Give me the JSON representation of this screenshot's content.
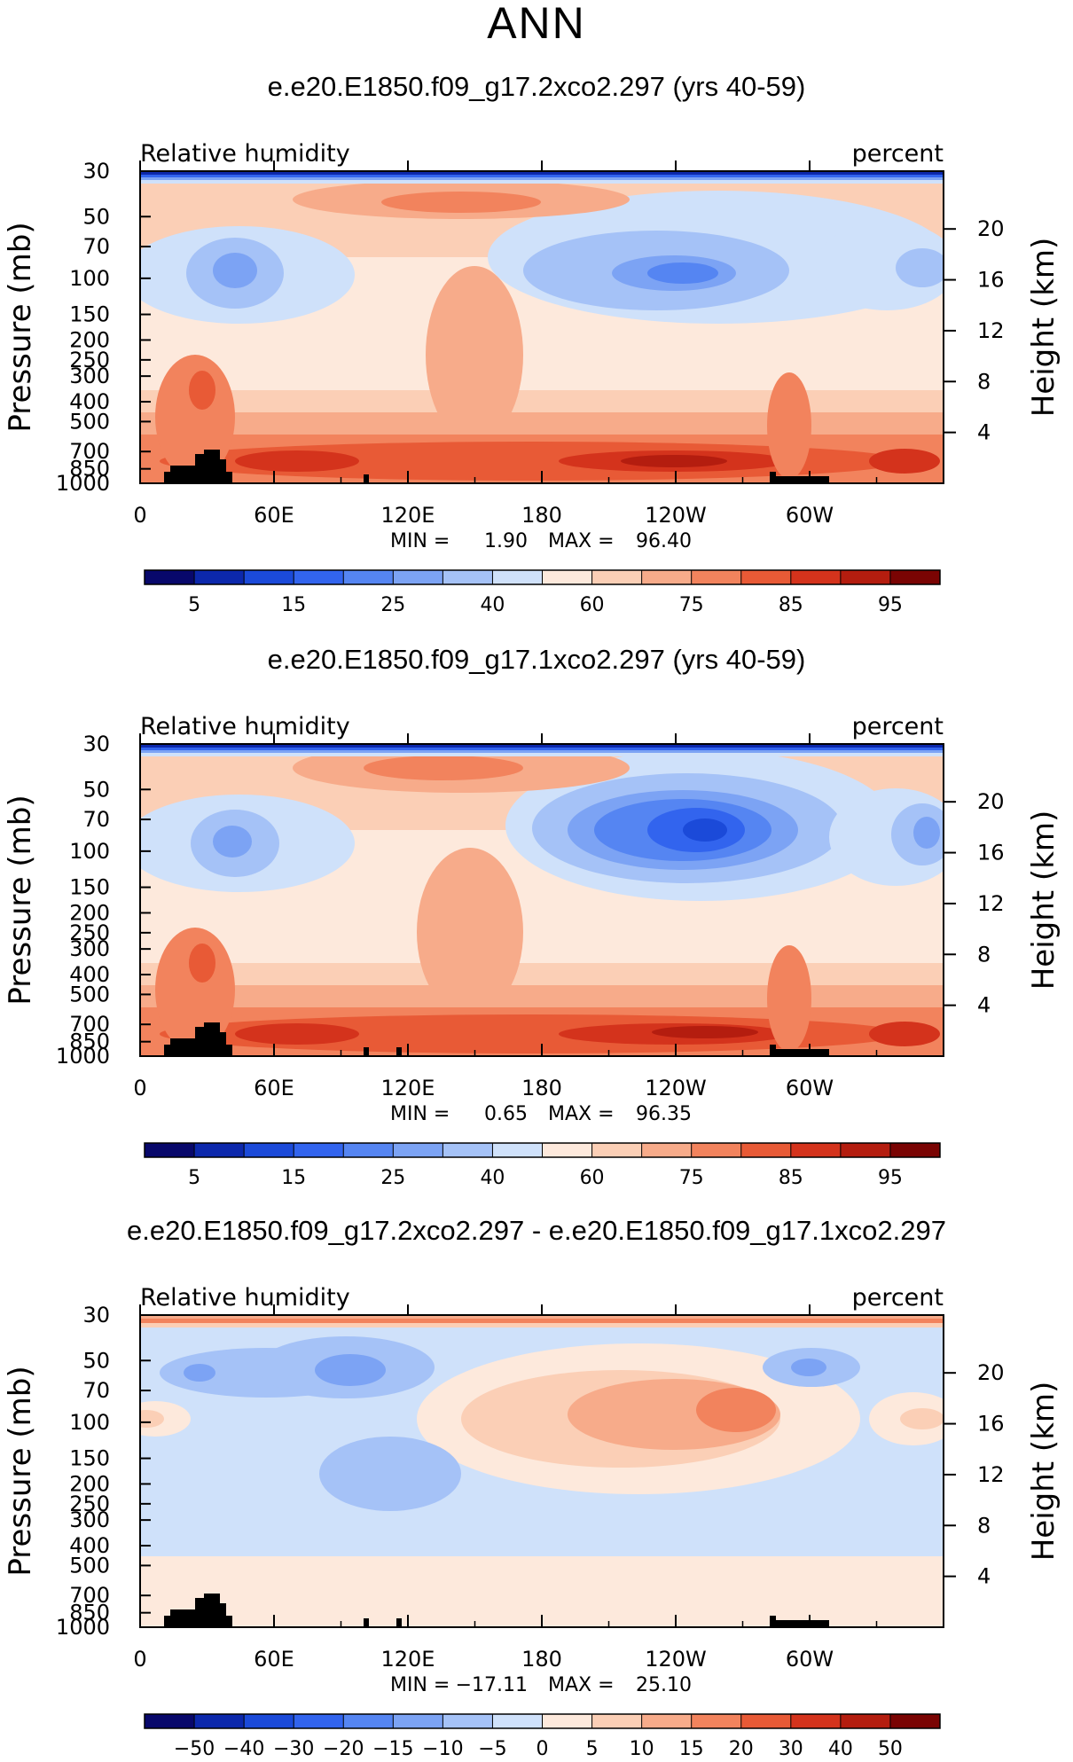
{
  "page_title": "ANN",
  "chart_data": [
    {
      "type": "heatmap",
      "title": "e.e20.E1850.f09_g17.2xco2.297 (yrs 40-59)",
      "left_label": "Relative humidity",
      "right_label": "percent",
      "ylabel": "Pressure (mb)",
      "ylabel_right": "Height (km)",
      "x_ticks": [
        "0",
        "60E",
        "120E",
        "180",
        "120W",
        "60W"
      ],
      "y_ticks": [
        "30",
        "50",
        "70",
        "100",
        "150",
        "200",
        "250",
        "300",
        "400",
        "500",
        "700",
        "850",
        "1000"
      ],
      "height_ticks": [
        "20",
        "16",
        "12",
        "8",
        "4"
      ],
      "stats": {
        "min_label": "MIN =",
        "min": "1.90",
        "max_label": "MAX =",
        "max": "96.40"
      },
      "colorbar_levels": [
        "5",
        "10",
        "15",
        "20",
        "25",
        "30",
        "40",
        "50",
        "60",
        "70",
        "75",
        "80",
        "85",
        "90",
        "95"
      ],
      "colorbar_labels": [
        "5",
        "15",
        "25",
        "40",
        "60",
        "75",
        "85",
        "95"
      ],
      "colorbar_colors": [
        "#08086b",
        "#0c28ac",
        "#1b4ad9",
        "#3264ee",
        "#5585f2",
        "#7ca3f4",
        "#a5c2f7",
        "#cfe1fa",
        "#fde9dc",
        "#fbcfb6",
        "#f7ab8a",
        "#f2835d",
        "#e85a36",
        "#d4331c",
        "#b41d0f",
        "#7a0403"
      ]
    },
    {
      "type": "heatmap",
      "title": "e.e20.E1850.f09_g17.1xco2.297 (yrs 40-59)",
      "left_label": "Relative humidity",
      "right_label": "percent",
      "ylabel": "Pressure (mb)",
      "ylabel_right": "Height (km)",
      "x_ticks": [
        "0",
        "60E",
        "120E",
        "180",
        "120W",
        "60W"
      ],
      "y_ticks": [
        "30",
        "50",
        "70",
        "100",
        "150",
        "200",
        "250",
        "300",
        "400",
        "500",
        "700",
        "850",
        "1000"
      ],
      "height_ticks": [
        "20",
        "16",
        "12",
        "8",
        "4"
      ],
      "stats": {
        "min_label": "MIN =",
        "min": "0.65",
        "max_label": "MAX =",
        "max": "96.35"
      },
      "colorbar_levels": [
        "5",
        "10",
        "15",
        "20",
        "25",
        "30",
        "40",
        "50",
        "60",
        "70",
        "75",
        "80",
        "85",
        "90",
        "95"
      ],
      "colorbar_labels": [
        "5",
        "15",
        "25",
        "40",
        "60",
        "75",
        "85",
        "95"
      ],
      "colorbar_colors": [
        "#08086b",
        "#0c28ac",
        "#1b4ad9",
        "#3264ee",
        "#5585f2",
        "#7ca3f4",
        "#a5c2f7",
        "#cfe1fa",
        "#fde9dc",
        "#fbcfb6",
        "#f7ab8a",
        "#f2835d",
        "#e85a36",
        "#d4331c",
        "#b41d0f",
        "#7a0403"
      ]
    },
    {
      "type": "heatmap",
      "title": "e.e20.E1850.f09_g17.2xco2.297 - e.e20.E1850.f09_g17.1xco2.297",
      "left_label": "Relative humidity",
      "right_label": "percent",
      "ylabel": "Pressure (mb)",
      "ylabel_right": "Height (km)",
      "x_ticks": [
        "0",
        "60E",
        "120E",
        "180",
        "120W",
        "60W"
      ],
      "y_ticks": [
        "30",
        "50",
        "70",
        "100",
        "150",
        "200",
        "250",
        "300",
        "400",
        "500",
        "700",
        "850",
        "1000"
      ],
      "height_ticks": [
        "20",
        "16",
        "12",
        "8",
        "4"
      ],
      "stats": {
        "min_label": "MIN =",
        "min": "−17.11",
        "max_label": "MAX =",
        "max": "25.10"
      },
      "colorbar_levels": [
        "−50",
        "−40",
        "−30",
        "−20",
        "−15",
        "−10",
        "−5",
        "0",
        "5",
        "10",
        "15",
        "20",
        "30",
        "40",
        "50"
      ],
      "colorbar_labels": [
        "−50",
        "−40",
        "−30",
        "−20",
        "−15",
        "−10",
        "−5",
        "0",
        "5",
        "10",
        "15",
        "20",
        "30",
        "40",
        "50"
      ],
      "colorbar_colors": [
        "#08086b",
        "#0c28ac",
        "#1b4ad9",
        "#3264ee",
        "#5585f2",
        "#7ca3f4",
        "#a5c2f7",
        "#cfe1fa",
        "#fde9dc",
        "#fbcfb6",
        "#f7ab8a",
        "#f2835d",
        "#e85a36",
        "#d4331c",
        "#b41d0f",
        "#7a0403"
      ]
    }
  ]
}
